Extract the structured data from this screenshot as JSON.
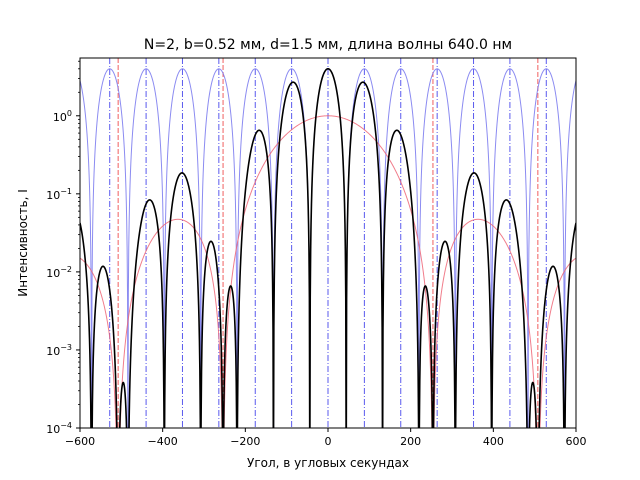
{
  "chart_data": {
    "type": "line",
    "title": "N=2, b=0.52 мм, d=1.5 мм, длина волны 640.0 нм",
    "xlabel": "Угол, в угловых секундах",
    "ylabel": "Интенсивность, I",
    "xlim": [
      -600,
      600
    ],
    "ylim": [
      0.0001,
      5.5
    ],
    "yscale": "log",
    "grid": false,
    "legend": "none",
    "x_ticks": [
      -600,
      -400,
      -200,
      0,
      200,
      400,
      600
    ],
    "x_tick_labels": [
      "−600",
      "−400",
      "−200",
      "0",
      "200",
      "400",
      "600"
    ],
    "y_ticks": [
      0.0001,
      0.001,
      0.01,
      0.1,
      1
    ],
    "y_tick_labels": [
      {
        "base": "10",
        "exp": "−4"
      },
      {
        "base": "10",
        "exp": "−3"
      },
      {
        "base": "10",
        "exp": "−2"
      },
      {
        "base": "10",
        "exp": "−1"
      },
      {
        "base": "10",
        "exp": "0"
      }
    ],
    "model": {
      "N": 2,
      "slit_width_mm": 0.52,
      "slit_period_mm": 1.5,
      "wavelength_nm": 640.0,
      "x_step_arcsec": 1
    },
    "series": [
      {
        "role": "total",
        "color": "#000000",
        "style": "solid"
      },
      {
        "role": "interference",
        "color": "#7777ee",
        "style": "solid"
      },
      {
        "role": "diffraction",
        "color": "#ee6677",
        "style": "solid"
      }
    ],
    "interference_maxima_arcsec": [
      -528.1,
      -440.1,
      -352.1,
      -264.1,
      -176.0,
      -88.0,
      0,
      88.0,
      176.0,
      264.1,
      352.1,
      440.1,
      528.1
    ],
    "diffraction_minima_arcsec": [
      -507.7,
      -253.9,
      253.9,
      507.7
    ],
    "vline_colors": {
      "maxima": "#5a5aee",
      "minima": "#ee4444"
    }
  }
}
